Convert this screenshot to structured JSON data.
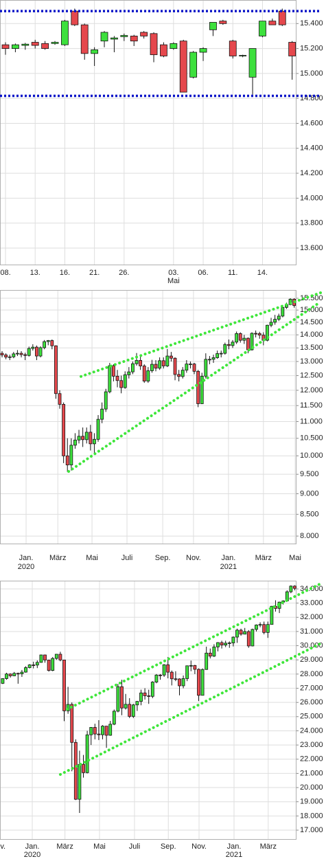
{
  "chart_data": [
    {
      "type": "candlestick",
      "log": false,
      "grid": true,
      "up_color": "#3de03d",
      "down_color": "#e5484d",
      "xlim": [
        -0.556,
        29.44
      ],
      "ylim": [
        13462,
        15589
      ],
      "xticks": [
        {
          "value": 0,
          "label": "08."
        },
        {
          "value": 3,
          "label": "13."
        },
        {
          "value": 6,
          "label": "16."
        },
        {
          "value": 9,
          "label": "21."
        },
        {
          "value": 12,
          "label": "26."
        },
        {
          "value": 17,
          "label": "03.",
          "sub": "Mai"
        },
        {
          "value": 20,
          "label": "06."
        },
        {
          "value": 23,
          "label": "11."
        },
        {
          "value": 26,
          "label": "14."
        }
      ],
      "yticks": [
        {
          "value": 13600,
          "label": "13.600"
        },
        {
          "value": 13800,
          "label": "13.800"
        },
        {
          "value": 14000,
          "label": "14.000"
        },
        {
          "value": 14200,
          "label": "14.200"
        },
        {
          "value": 14400,
          "label": "14.400"
        },
        {
          "value": 14600,
          "label": "14.600"
        },
        {
          "value": 14800,
          "label": "14.800"
        },
        {
          "value": 15000,
          "label": "15.000"
        },
        {
          "value": 15200,
          "label": "15.200"
        },
        {
          "value": 15400,
          "label": "15.400"
        }
      ],
      "open": [
        15230,
        15200,
        15225,
        15250,
        15240,
        15240,
        15230,
        15500,
        15390,
        15160,
        15260,
        15275,
        15295,
        15300,
        15330,
        15320,
        15230,
        15200,
        15260,
        14970,
        15170,
        15350,
        15420,
        15260,
        15140,
        14970,
        15300,
        15420,
        15500,
        15250
      ],
      "high": [
        15250,
        15240,
        15245,
        15270,
        15260,
        15260,
        15430,
        15520,
        15400,
        15210,
        15340,
        15300,
        15320,
        15310,
        15340,
        15330,
        15250,
        15250,
        15270,
        15180,
        15210,
        15410,
        15430,
        15270,
        15150,
        15200,
        15420,
        15440,
        15520,
        15260
      ],
      "low": [
        15150,
        15170,
        15190,
        15200,
        15190,
        15230,
        15220,
        15380,
        15110,
        15060,
        15210,
        15170,
        15260,
        15220,
        15280,
        15090,
        15130,
        15190,
        14850,
        14960,
        15100,
        15300,
        15390,
        15120,
        15130,
        14830,
        15290,
        15390,
        15380,
        14950
      ],
      "close": [
        15200,
        15230,
        15235,
        15225,
        15200,
        15250,
        15420,
        15390,
        15160,
        15190,
        15330,
        15285,
        15305,
        15260,
        15300,
        15150,
        15140,
        15240,
        14850,
        15170,
        15200,
        15410,
        15400,
        15140,
        15145,
        15200,
        15420,
        15390,
        15390,
        15140
      ],
      "hlines": [
        {
          "value": 15500,
          "color": "#0a14c8"
        },
        {
          "value": 14820,
          "color": "#0a14c8"
        }
      ]
    },
    {
      "type": "candlestick",
      "log": true,
      "grid": true,
      "up_color": "#3de03d",
      "down_color": "#e5484d",
      "xlim": [
        -0.54,
        76.6
      ],
      "ylim": [
        7820,
        15860
      ],
      "xticks": [
        {
          "value": 6.25,
          "label": "Jan.",
          "sub": "2020"
        },
        {
          "value": 14.5,
          "label": "März"
        },
        {
          "value": 23.4,
          "label": "Mai"
        },
        {
          "value": 32.5,
          "label": "Juli"
        },
        {
          "value": 41.8,
          "label": "Sep."
        },
        {
          "value": 49.8,
          "label": "Nov."
        },
        {
          "value": 58.9,
          "label": "Jan.",
          "sub": "2021"
        },
        {
          "value": 68,
          "label": "März"
        },
        {
          "value": 76.25,
          "label": "Mai"
        }
      ],
      "yticks": [
        {
          "value": 8000,
          "label": "8.000"
        },
        {
          "value": 8500,
          "label": "8.500"
        },
        {
          "value": 9000,
          "label": "9.000"
        },
        {
          "value": 9500,
          "label": "9.500"
        },
        {
          "value": 10000,
          "label": "10.000"
        },
        {
          "value": 10500,
          "label": "10.500"
        },
        {
          "value": 11000,
          "label": "11.000"
        },
        {
          "value": 11500,
          "label": "11.500"
        },
        {
          "value": 12000,
          "label": "12.000"
        },
        {
          "value": 12500,
          "label": "12.500"
        },
        {
          "value": 13000,
          "label": "13.000"
        },
        {
          "value": 13500,
          "label": "13.500"
        },
        {
          "value": 14000,
          "label": "14.000"
        },
        {
          "value": 14500,
          "label": "14.500"
        },
        {
          "value": 15000,
          "label": "15.000"
        },
        {
          "value": 15500,
          "label": "15.500"
        }
      ],
      "open": [
        13300,
        13240,
        13160,
        13170,
        13280,
        13300,
        13250,
        13220,
        13480,
        13530,
        13200,
        13510,
        13740,
        13780,
        13580,
        11890,
        11540,
        10000,
        9750,
        10300,
        10450,
        10560,
        10460,
        10680,
        10340,
        10470,
        11070,
        11390,
        11950,
        12850,
        12480,
        12330,
        12090,
        12530,
        12630,
        12920,
        13040,
        12840,
        12310,
        12670,
        12900,
        12760,
        13030,
        12840,
        13200,
        13120,
        12540,
        12470,
        12690,
        12910,
        12910,
        12650,
        11560,
        12480,
        13080,
        13080,
        13140,
        13290,
        13300,
        13630,
        13590,
        13720,
        14050,
        13790,
        13870,
        13430,
        14060,
        14050,
        13990,
        13790,
        14380,
        14500,
        14620,
        14750,
        15110,
        15230,
        15460
      ],
      "high": [
        13380,
        13300,
        13250,
        13350,
        13420,
        13380,
        13320,
        13550,
        13640,
        13590,
        13560,
        13800,
        13800,
        13820,
        13600,
        12000,
        11600,
        10500,
        10500,
        10650,
        10750,
        10820,
        10820,
        10900,
        10650,
        11200,
        11600,
        12050,
        12950,
        12900,
        12700,
        12500,
        12650,
        12800,
        13000,
        13310,
        13200,
        12900,
        12800,
        13060,
        13050,
        13150,
        13150,
        13460,
        13350,
        13150,
        12700,
        12800,
        13050,
        13000,
        12950,
        12700,
        12600,
        13300,
        13200,
        13250,
        13400,
        13400,
        13700,
        13820,
        13800,
        14130,
        14100,
        14000,
        13900,
        14100,
        14170,
        14120,
        14100,
        14400,
        14680,
        14800,
        14850,
        15200,
        15310,
        15500,
        15500
      ],
      "low": [
        13150,
        13080,
        13050,
        13120,
        13200,
        13150,
        13050,
        13180,
        13400,
        13050,
        13150,
        13450,
        13600,
        13450,
        11720,
        11400,
        9800,
        9560,
        9600,
        10200,
        10350,
        10250,
        10350,
        10150,
        10070,
        10400,
        10950,
        11300,
        11900,
        12300,
        12100,
        11900,
        12050,
        12400,
        12550,
        12850,
        12700,
        12250,
        12250,
        12600,
        12650,
        12700,
        12750,
        12800,
        13000,
        12340,
        12300,
        12400,
        12600,
        12750,
        12550,
        11450,
        11550,
        12400,
        12900,
        12950,
        13100,
        13150,
        13250,
        13450,
        13500,
        13650,
        13700,
        13650,
        13300,
        13400,
        13900,
        13850,
        13600,
        13750,
        14300,
        14400,
        14550,
        14700,
        15050,
        15200,
        15100
      ],
      "close": [
        13240,
        13160,
        13170,
        13280,
        13300,
        13250,
        13220,
        13480,
        13530,
        13200,
        13510,
        13740,
        13780,
        13580,
        11890,
        11540,
        10000,
        9750,
        10300,
        10450,
        10560,
        10460,
        10680,
        10340,
        10470,
        11070,
        11390,
        11950,
        12850,
        12480,
        12330,
        12090,
        12530,
        12630,
        12920,
        13040,
        12840,
        12310,
        12670,
        12900,
        12760,
        13030,
        12840,
        13200,
        13120,
        12540,
        12470,
        12690,
        12910,
        12910,
        12650,
        11560,
        12480,
        13080,
        13080,
        13140,
        13290,
        13300,
        13630,
        13590,
        13720,
        14050,
        13790,
        13870,
        13430,
        14060,
        14050,
        13990,
        13790,
        14380,
        14500,
        14620,
        14750,
        15110,
        15230,
        15460,
        15190
      ],
      "trendlines": [
        {
          "x": [
            20.53,
            83.39
          ],
          "y": [
            12470,
            15770
          ],
          "color": "#3ee63a"
        },
        {
          "x": [
            17.32,
            82.68
          ],
          "y": [
            9575,
            15326
          ],
          "color": "#3ee63a"
        }
      ]
    },
    {
      "type": "candlestick",
      "log": false,
      "grid": true,
      "up_color": "#3de03d",
      "down_color": "#e5484d",
      "xlim": [
        -0.7,
        76.45
      ],
      "ylim": [
        16322,
        34581
      ],
      "xticks": [
        {
          "value": -1.2,
          "label": "Nov."
        },
        {
          "value": 7.7,
          "label": "Jan.",
          "sub": "2020"
        },
        {
          "value": 16.2,
          "label": "März"
        },
        {
          "value": 25.2,
          "label": "Mai"
        },
        {
          "value": 34.3,
          "label": "Juli"
        },
        {
          "value": 43.1,
          "label": "Sep."
        },
        {
          "value": 51.1,
          "label": "Nov."
        },
        {
          "value": 60.2,
          "label": "Jan.",
          "sub": "2021"
        },
        {
          "value": 69.1,
          "label": "März"
        }
      ],
      "yticks": [
        {
          "value": 17000,
          "label": "17.000"
        },
        {
          "value": 18000,
          "label": "18.000"
        },
        {
          "value": 19000,
          "label": "19.000"
        },
        {
          "value": 20000,
          "label": "20.000"
        },
        {
          "value": 21000,
          "label": "21.000"
        },
        {
          "value": 22000,
          "label": "22.000"
        },
        {
          "value": 23000,
          "label": "23.000"
        },
        {
          "value": 24000,
          "label": "24.000"
        },
        {
          "value": 25000,
          "label": "25.000"
        },
        {
          "value": 26000,
          "label": "26.000"
        },
        {
          "value": 27000,
          "label": "27.000"
        },
        {
          "value": 28000,
          "label": "28.000"
        },
        {
          "value": 29000,
          "label": "29.000"
        },
        {
          "value": 30000,
          "label": "30.000"
        },
        {
          "value": 31000,
          "label": "31.000"
        },
        {
          "value": 32000,
          "label": "32.000"
        },
        {
          "value": 33000,
          "label": "33.000"
        },
        {
          "value": 34000,
          "label": "34.000"
        }
      ],
      "open": [
        27347,
        27681,
        28005,
        27876,
        28051,
        28015,
        28135,
        28455,
        28645,
        28634,
        28823,
        29348,
        28990,
        28256,
        29102,
        29398,
        28992,
        25409,
        25864,
        23185,
        19174,
        21637,
        21052,
        23719,
        24242,
        23775,
        23723,
        24331,
        23685,
        24465,
        25383,
        27111,
        25606,
        25871,
        25016,
        25827,
        26075,
        26672,
        26469,
        26428,
        27433,
        27931,
        27930,
        28654,
        28133,
        27666,
        27657,
        27173,
        27682,
        28586,
        28606,
        28335,
        26501,
        28323,
        29479,
        29263,
        29910,
        30218,
        30046,
        30179,
        30199,
        30606,
        31097,
        30814,
        30996,
        29982,
        31148,
        31458,
        31494,
        30932,
        31496,
        32778,
        32627,
        33072,
        33153,
        33800,
        34200
      ],
      "high": [
        27700,
        28090,
        28050,
        28150,
        28100,
        28290,
        28550,
        28700,
        28870,
        28960,
        29370,
        29370,
        29000,
        29200,
        29420,
        29570,
        29000,
        27100,
        26000,
        23400,
        22600,
        22300,
        24000,
        24260,
        24500,
        24750,
        24400,
        24300,
        24700,
        25500,
        27300,
        27600,
        26600,
        26300,
        25900,
        26100,
        26900,
        27000,
        26900,
        27500,
        28000,
        28000,
        28700,
        29200,
        28250,
        28200,
        27700,
        27900,
        28600,
        28950,
        28650,
        28400,
        28400,
        29930,
        29800,
        30100,
        30250,
        30350,
        30350,
        30300,
        30650,
        31200,
        31200,
        31250,
        31100,
        31200,
        31500,
        31650,
        31700,
        31700,
        32800,
        33200,
        33100,
        33200,
        33900,
        34250,
        34260
      ],
      "low": [
        27300,
        27600,
        27750,
        27850,
        27320,
        27800,
        28100,
        28400,
        28400,
        28420,
        28800,
        28800,
        28170,
        28200,
        29000,
        28900,
        24680,
        25200,
        21150,
        19120,
        18210,
        20700,
        21000,
        23000,
        23400,
        23350,
        23400,
        22800,
        23650,
        24400,
        25300,
        25100,
        25500,
        24900,
        24900,
        25400,
        25800,
        26200,
        25900,
        26300,
        27350,
        27600,
        27800,
        27700,
        27200,
        27500,
        26500,
        27000,
        27500,
        28200,
        28000,
        26100,
        26500,
        28300,
        29100,
        29200,
        29600,
        29800,
        29900,
        29850,
        29950,
        30200,
        30700,
        30800,
        29850,
        29950,
        31000,
        31300,
        30800,
        30550,
        31500,
        32400,
        32300,
        32900,
        33100,
        33700,
        33900
      ],
      "close": [
        27681,
        28005,
        27876,
        28051,
        28015,
        28135,
        28455,
        28645,
        28634,
        28823,
        29348,
        28990,
        28256,
        29102,
        29398,
        28992,
        25409,
        25864,
        23185,
        19174,
        21637,
        21052,
        23719,
        24242,
        23775,
        23723,
        24331,
        23685,
        24465,
        25383,
        27111,
        25606,
        25871,
        25016,
        25827,
        26075,
        26672,
        26469,
        26428,
        27433,
        27931,
        27930,
        28654,
        28133,
        27666,
        27657,
        27173,
        27682,
        28586,
        28606,
        28335,
        26501,
        28323,
        29479,
        29263,
        29910,
        30218,
        30046,
        30179,
        30199,
        30606,
        31097,
        30814,
        30996,
        29982,
        31148,
        31458,
        31494,
        30932,
        31496,
        32778,
        32627,
        33072,
        33153,
        33800,
        34200,
        34043
      ],
      "trendlines": [
        {
          "x": [
            16.8,
            83.23
          ],
          "y": [
            25524,
            34436
          ],
          "color": "#3ee63a"
        },
        {
          "x": [
            15.0,
            82.5
          ],
          "y": [
            20923,
            30125
          ],
          "color": "#3ee63a"
        }
      ]
    }
  ]
}
